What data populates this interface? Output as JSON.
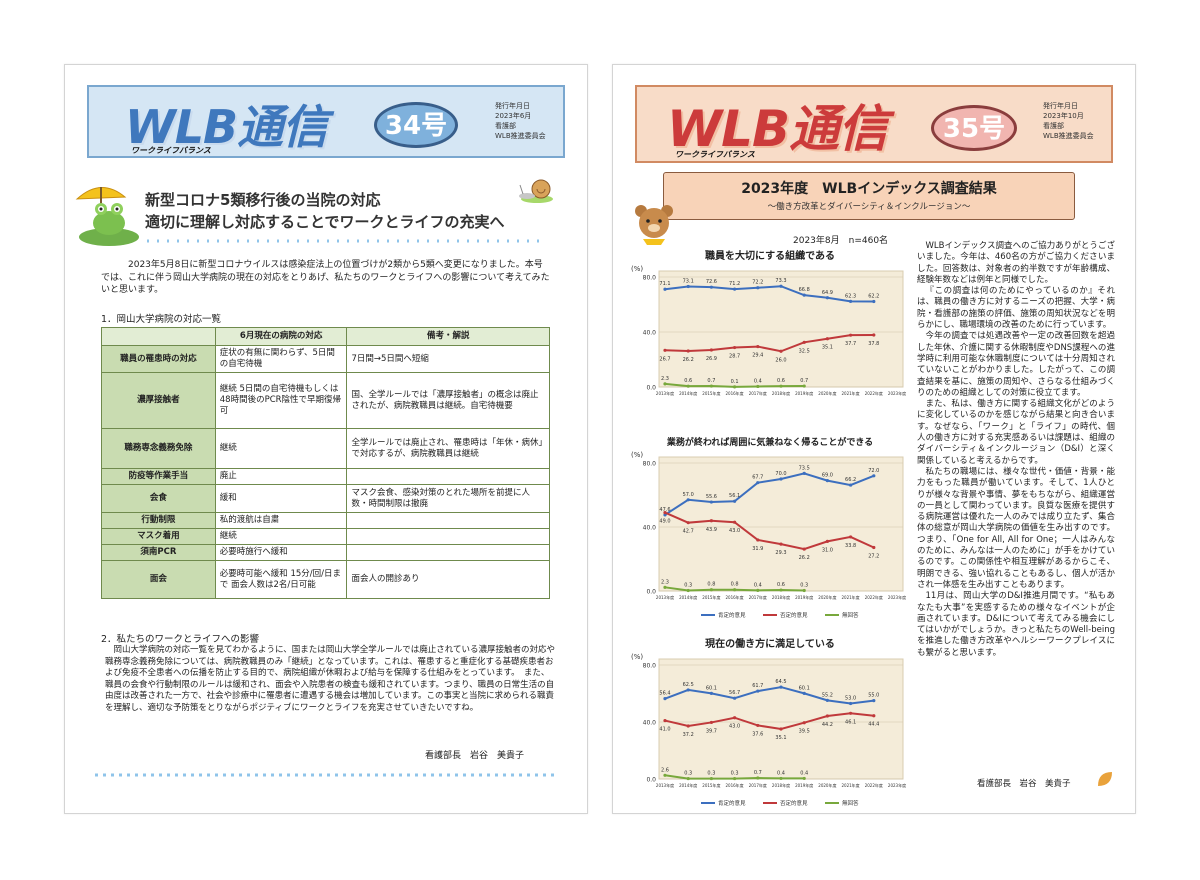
{
  "page34": {
    "header": {
      "title": "WLB通信",
      "subtitle": "ワークライフバランス",
      "issue": "34号",
      "date_label": "発行年月日",
      "date": "2023年6月",
      "publisher": "看護部",
      "committee": "WLB推進委員会"
    },
    "headline": {
      "line1": "新型コロナ5類移行後の当院の対応",
      "line2": "適切に理解し対応することでワークとライフの充実へ"
    },
    "intro": "2023年5月8日に新型コロナウイルスは感染症法上の位置づけが2類から5類へ変更になりました。本号では、これに伴う岡山大学病院の現在の対応をとりあげ、私たちのワークとライフへの影響について考えてみたいと思います。",
    "section1": "1．岡山大学病院の対応一覧",
    "table": {
      "headers": [
        "",
        "6月現在の病院の対応",
        "備考・解説"
      ],
      "rows": [
        {
          "label": "職員の罹患時の対応",
          "response": "症状の有無に関わらず、5日間の自宅待機",
          "note": "7日間→5日間へ短縮"
        },
        {
          "label": "濃厚接触者",
          "response": "継続 5日間の自宅待機もしくは48時間後のPCR陰性で早期復帰可",
          "note": "国、全学ルールでは「濃厚接触者」の概念は廃止されたが、病院教職員は継続。自宅待機要"
        },
        {
          "label": "職務専念義務免除",
          "response": "継続",
          "note": "全学ルールでは廃止され、罹患時は「年休・病休」で対応するが、病院教職員は継続"
        },
        {
          "label": "防疫等作業手当",
          "response": "廃止",
          "note": ""
        },
        {
          "label": "会食",
          "response": "緩和",
          "note": "マスク会食、感染対策のとれた場所を前提に人数・時間制限は撤廃"
        },
        {
          "label": "行動制限",
          "response": "私的渡航は自粛",
          "note": ""
        },
        {
          "label": "マスク着用",
          "response": "継続",
          "note": ""
        },
        {
          "label": "須南PCR",
          "response": "必要時施行へ緩和",
          "note": ""
        },
        {
          "label": "面会",
          "response": "必要時可能へ緩和 15分/回/日まで 面会人数は2名/日可能",
          "note": "面会人の開診あり"
        }
      ]
    },
    "section2": "2．私たちのワークとライフへの影響",
    "body2": "岡山大学病院の対応一覧を見てわかるように、国または岡山大学全学ルールでは廃止されている濃厚接触者の対応や職務専念義務免除については、病院教職員のみ「継続」となっています。これは、罹患すると重症化する基礎疾患者および免疫不全患者への伝播を防止する目的で、病院組織が休暇および給与を保障する仕組みをとっています。　また、職員の会食や行動制限のルールは緩和され、面会や入院患者の検査も緩和されています。つまり、職員の日常生活の自由度は改善された一方で、社会や診療中に罹患者に遭遇する機会は増加しています。この事実と当院に求められる職責を理解し、適切な予防策をとりながらポジティブにワークとライフを充実させていきたいですね。",
    "signature": "看護部長　岩谷　美貴子"
  },
  "page35": {
    "header": {
      "title": "WLB通信",
      "subtitle": "ワークライフバランス",
      "issue": "35号",
      "date_label": "発行年月日",
      "date": "2023年10月",
      "publisher": "看護部",
      "committee": "WLB推進委員会"
    },
    "banner": {
      "title": "2023年度　WLBインデックス調査結果",
      "subtitle": "～働き方改革とダイバーシティ＆インクルージョン～"
    },
    "survey_date": "2023年8月　n=460名",
    "paragraphs": [
      "WLBインデックス調査へのご協力ありがとうございました。今年は、460名の方がご協力くださいました。回答数は、対象者の約半数ですが年齢構成、経験年数などは例年と同様でした。",
      "『この調査は何のためにやっているのか』それは、職員の働き方に対するニーズの把握、大学・病院・看護部の施策の評価、施策の周知状況などを明らかにし、職場環境の改善のために行っています。",
      "今年の調査では処遇改善や一定の改善回数を超過した年休、介護に関する休暇制度やDNS課程への進学時に利用可能な休職制度については十分周知されていないことがわかりました。したがって、この調査結果を基に、施策の周知や、さらなる仕組みづくりのための組織としての対策に役立てます。",
      "また、私は、働き方に関する組織文化がどのように変化しているのかを感じながら結果と向き合います。なぜなら、「ワーク」と「ライフ」の時代、個人の働き方に対する充実感あるいは課題は、組織のダイバーシティ＆インクルージョン（D&I）と深く関係していると考えるからです。",
      "私たちの職場には、様々な世代・価値・背景・能力をもった職員が働いています。そして、1人ひとりが様々な背景や事情、夢をもちながら、組織運営の一員として関わっています。良質な医療を提供する病院運営は優れた一人のみでは成り立たず、集合体の総意が岡山大学病院の価値を生み出すのです。つまり、「One for All, All for One；一人はみんなのために、みんなは一人のために」が手をかけているのです。この関係性や相互理解があるからこそ、明朗できる、強い協れることもあるし、個人が活かされ一体感を生み出すこともあります。",
      "11月は、岡山大学のD&I推進月間です。“私もあなたも大事”を実感するための様々なイベントが企画されています。D&Iについて考えてみる機会にしてはいかがでしょうか。きっと私たちのWell-beingを推進した働き方改革やヘルシーワークプレイスにも繋がると思います。"
    ],
    "signature": "看護部長　岩谷　美貴子"
  },
  "chart_data": [
    {
      "type": "line",
      "title": "職員を大切にする組織である",
      "ylabel": "(%)",
      "ylim": [
        0,
        80
      ],
      "yticks": [
        "0.0",
        "40.0",
        "80.0"
      ],
      "x": [
        "2013年度",
        "2014年度",
        "2015年度",
        "2016年度",
        "2017年度",
        "2018年度",
        "2019年度",
        "2020年度",
        "2021年度",
        "2022年度",
        "2023年度"
      ],
      "series": [
        {
          "name": "肯定的意見",
          "color": "#3c6fbf",
          "values": [
            71.1,
            73.1,
            72.6,
            71.2,
            72.2,
            73.3,
            66.8,
            64.9,
            62.3,
            62.2,
            null
          ]
        },
        {
          "name": "否定的意見",
          "color": "#c0393b",
          "values": [
            26.7,
            26.2,
            26.9,
            28.7,
            29.4,
            26.0,
            32.5,
            35.1,
            37.7,
            37.8,
            null
          ]
        },
        {
          "name": "無回答",
          "color": "#78a83c",
          "values": [
            2.3,
            0.6,
            0.7,
            0.1,
            0.4,
            0.6,
            0.7,
            null,
            null,
            null,
            null
          ]
        }
      ],
      "legend_placement": "none"
    },
    {
      "type": "line",
      "title": "業務が終われば周囲に気兼ねなく帰ることができる",
      "ylabel": "(%)",
      "ylim": [
        0,
        80
      ],
      "yticks": [
        "0.0",
        "40.0",
        "80.0"
      ],
      "x": [
        "2013年度",
        "2014年度",
        "2015年度",
        "2016年度",
        "2017年度",
        "2018年度",
        "2019年度",
        "2020年度",
        "2021年度",
        "2022年度",
        "2023年度"
      ],
      "series": [
        {
          "name": "肯定的意見",
          "color": "#3c6fbf",
          "values": [
            47.6,
            57.0,
            55.6,
            56.1,
            67.7,
            70.0,
            73.5,
            69.0,
            66.2,
            72.0,
            null
          ]
        },
        {
          "name": "否定的意見",
          "color": "#c0393b",
          "values": [
            49.0,
            42.7,
            43.9,
            43.0,
            31.9,
            29.3,
            26.2,
            31.0,
            33.8,
            27.2,
            null
          ]
        },
        {
          "name": "無回答",
          "color": "#78a83c",
          "values": [
            2.3,
            0.3,
            0.8,
            0.8,
            0.4,
            0.6,
            0.3,
            null,
            null,
            null,
            null
          ]
        }
      ],
      "legend_placement": "bottom"
    },
    {
      "type": "line",
      "title": "現在の働き方に満足している",
      "ylabel": "(%)",
      "ylim": [
        0,
        80
      ],
      "yticks": [
        "0.0",
        "40.0",
        "80.0"
      ],
      "x": [
        "2013年度",
        "2014年度",
        "2015年度",
        "2016年度",
        "2017年度",
        "2018年度",
        "2019年度",
        "2020年度",
        "2021年度",
        "2022年度",
        "2023年度"
      ],
      "series": [
        {
          "name": "肯定的意見",
          "color": "#3c6fbf",
          "values": [
            56.4,
            62.5,
            60.1,
            56.7,
            61.7,
            64.5,
            60.1,
            55.2,
            53.0,
            55.0,
            null
          ]
        },
        {
          "name": "否定的意見",
          "color": "#c0393b",
          "values": [
            41.0,
            37.2,
            39.7,
            43.0,
            37.6,
            35.1,
            39.5,
            44.2,
            46.1,
            44.4,
            null
          ]
        },
        {
          "name": "無回答",
          "color": "#78a83c",
          "values": [
            2.6,
            0.3,
            0.3,
            0.3,
            0.7,
            0.4,
            0.4,
            null,
            null,
            null,
            null
          ]
        }
      ],
      "legend_placement": "bottom"
    }
  ]
}
